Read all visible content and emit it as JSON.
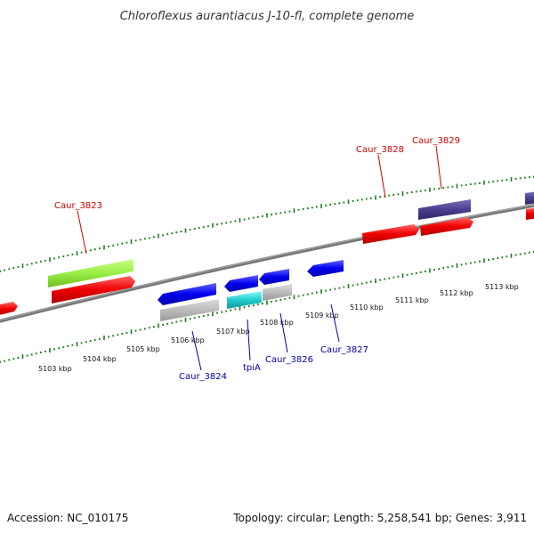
{
  "title": "Chloroflexus aurantiacus J-10-fl, complete genome",
  "accession": "Accession: NC_010175",
  "summary": "Topology: circular; Length: 5,258,541 bp; Genes: 3,911",
  "colors": {
    "forward_label": "#cc0000",
    "reverse_label": "#0000aa",
    "ticks": "#1e7a1e",
    "backbone": "#777777"
  },
  "scale_ticks": [
    "5103 kbp",
    "5104 kbp",
    "5105 kbp",
    "5106 kbp",
    "5107 kbp",
    "5108 kbp",
    "5109 kbp",
    "5110 kbp",
    "5111 kbp",
    "5112 kbp",
    "5113 kbp"
  ],
  "forward_labels": [
    "Caur_3823",
    "Caur_3828",
    "Caur_3829"
  ],
  "reverse_labels": [
    "Caur_3824",
    "tpiA",
    "Caur_3826",
    "Caur_3827"
  ],
  "feature_colors": {
    "cds_forward": "#ee0000",
    "cds_reverse": "#0000ee",
    "grey": "#b8b8b8",
    "green": "#99ee44",
    "purple": "#4a3f8f",
    "cyan": "#22cccc"
  }
}
